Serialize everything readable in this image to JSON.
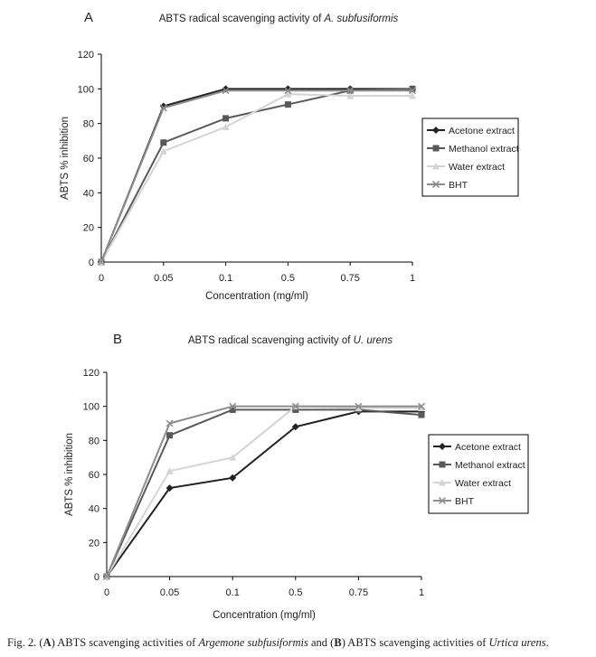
{
  "caption": {
    "prefix": "Fig. 2. (",
    "a": "A",
    "mid1": ") ABTS scavenging activities of ",
    "species_a": "Argemone subfusiformis",
    "mid2": " and (",
    "b": "B",
    "mid3": ") ABTS scavenging activities of ",
    "species_b": "Urtica urens",
    "end": "."
  },
  "styles": {
    "Acetone extract": {
      "color": "#222222",
      "marker": "diamond"
    },
    "Methanol extract": {
      "color": "#595959",
      "marker": "square"
    },
    "Water extract": {
      "color": "#d4d4d4",
      "marker": "triangle"
    },
    "BHT": {
      "color": "#8c8c8c",
      "marker": "x"
    }
  },
  "chart_data": [
    {
      "panel": "A",
      "type": "line",
      "title_prefix": "ABTS radical scavenging activity of ",
      "title_species": "A. subfusiformis",
      "xlabel": "Concentration (mg/ml)",
      "ylabel": "ABTS % inhibition",
      "ylim": [
        0,
        120
      ],
      "yticks": [
        0,
        20,
        40,
        60,
        80,
        100,
        120
      ],
      "categories": [
        "0",
        "0.05",
        "0.1",
        "0.5",
        "0.75",
        "1"
      ],
      "legend": "right",
      "grid": false,
      "series": [
        {
          "name": "Acetone extract",
          "values": [
            0,
            90,
            100,
            100,
            100,
            100
          ]
        },
        {
          "name": "Methanol extract",
          "values": [
            0,
            69,
            83,
            91,
            99,
            100
          ]
        },
        {
          "name": "Water extract",
          "values": [
            0,
            64,
            78,
            97,
            96,
            96
          ]
        },
        {
          "name": "BHT",
          "values": [
            0,
            89,
            99,
            99,
            99,
            99
          ]
        }
      ]
    },
    {
      "panel": "B",
      "type": "line",
      "title_prefix": "ABTS radical scavenging activity of ",
      "title_species": "U. urens",
      "xlabel": "Concentration (mg/ml)",
      "ylabel": "ABTS % inhibition",
      "ylim": [
        0,
        120
      ],
      "yticks": [
        0,
        20,
        40,
        60,
        80,
        100,
        120
      ],
      "categories": [
        "0",
        "0.05",
        "0.1",
        "0.5",
        "0.75",
        "1"
      ],
      "legend": "right",
      "grid": false,
      "series": [
        {
          "name": "Acetone extract",
          "values": [
            0,
            52,
            58,
            88,
            97,
            97
          ]
        },
        {
          "name": "Methanol extract",
          "values": [
            0,
            83,
            98,
            98,
            98,
            95
          ]
        },
        {
          "name": "Water extract",
          "values": [
            0,
            62,
            70,
            100,
            99,
            99
          ]
        },
        {
          "name": "BHT",
          "values": [
            0,
            90,
            100,
            100,
            100,
            100
          ]
        }
      ]
    }
  ]
}
